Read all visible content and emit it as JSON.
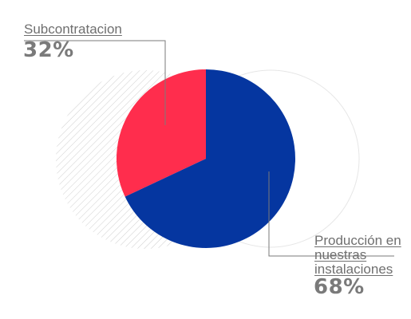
{
  "chart_data": {
    "type": "pie",
    "slices": [
      {
        "label": "Subcontratacion",
        "value": 32,
        "value_label": "32%",
        "color": "#ff2d4d"
      },
      {
        "label": "Producción en nuestras instalaciones",
        "value": 68,
        "value_label": "68%",
        "color": "#0536a0"
      }
    ],
    "title": "",
    "legend": "none"
  }
}
